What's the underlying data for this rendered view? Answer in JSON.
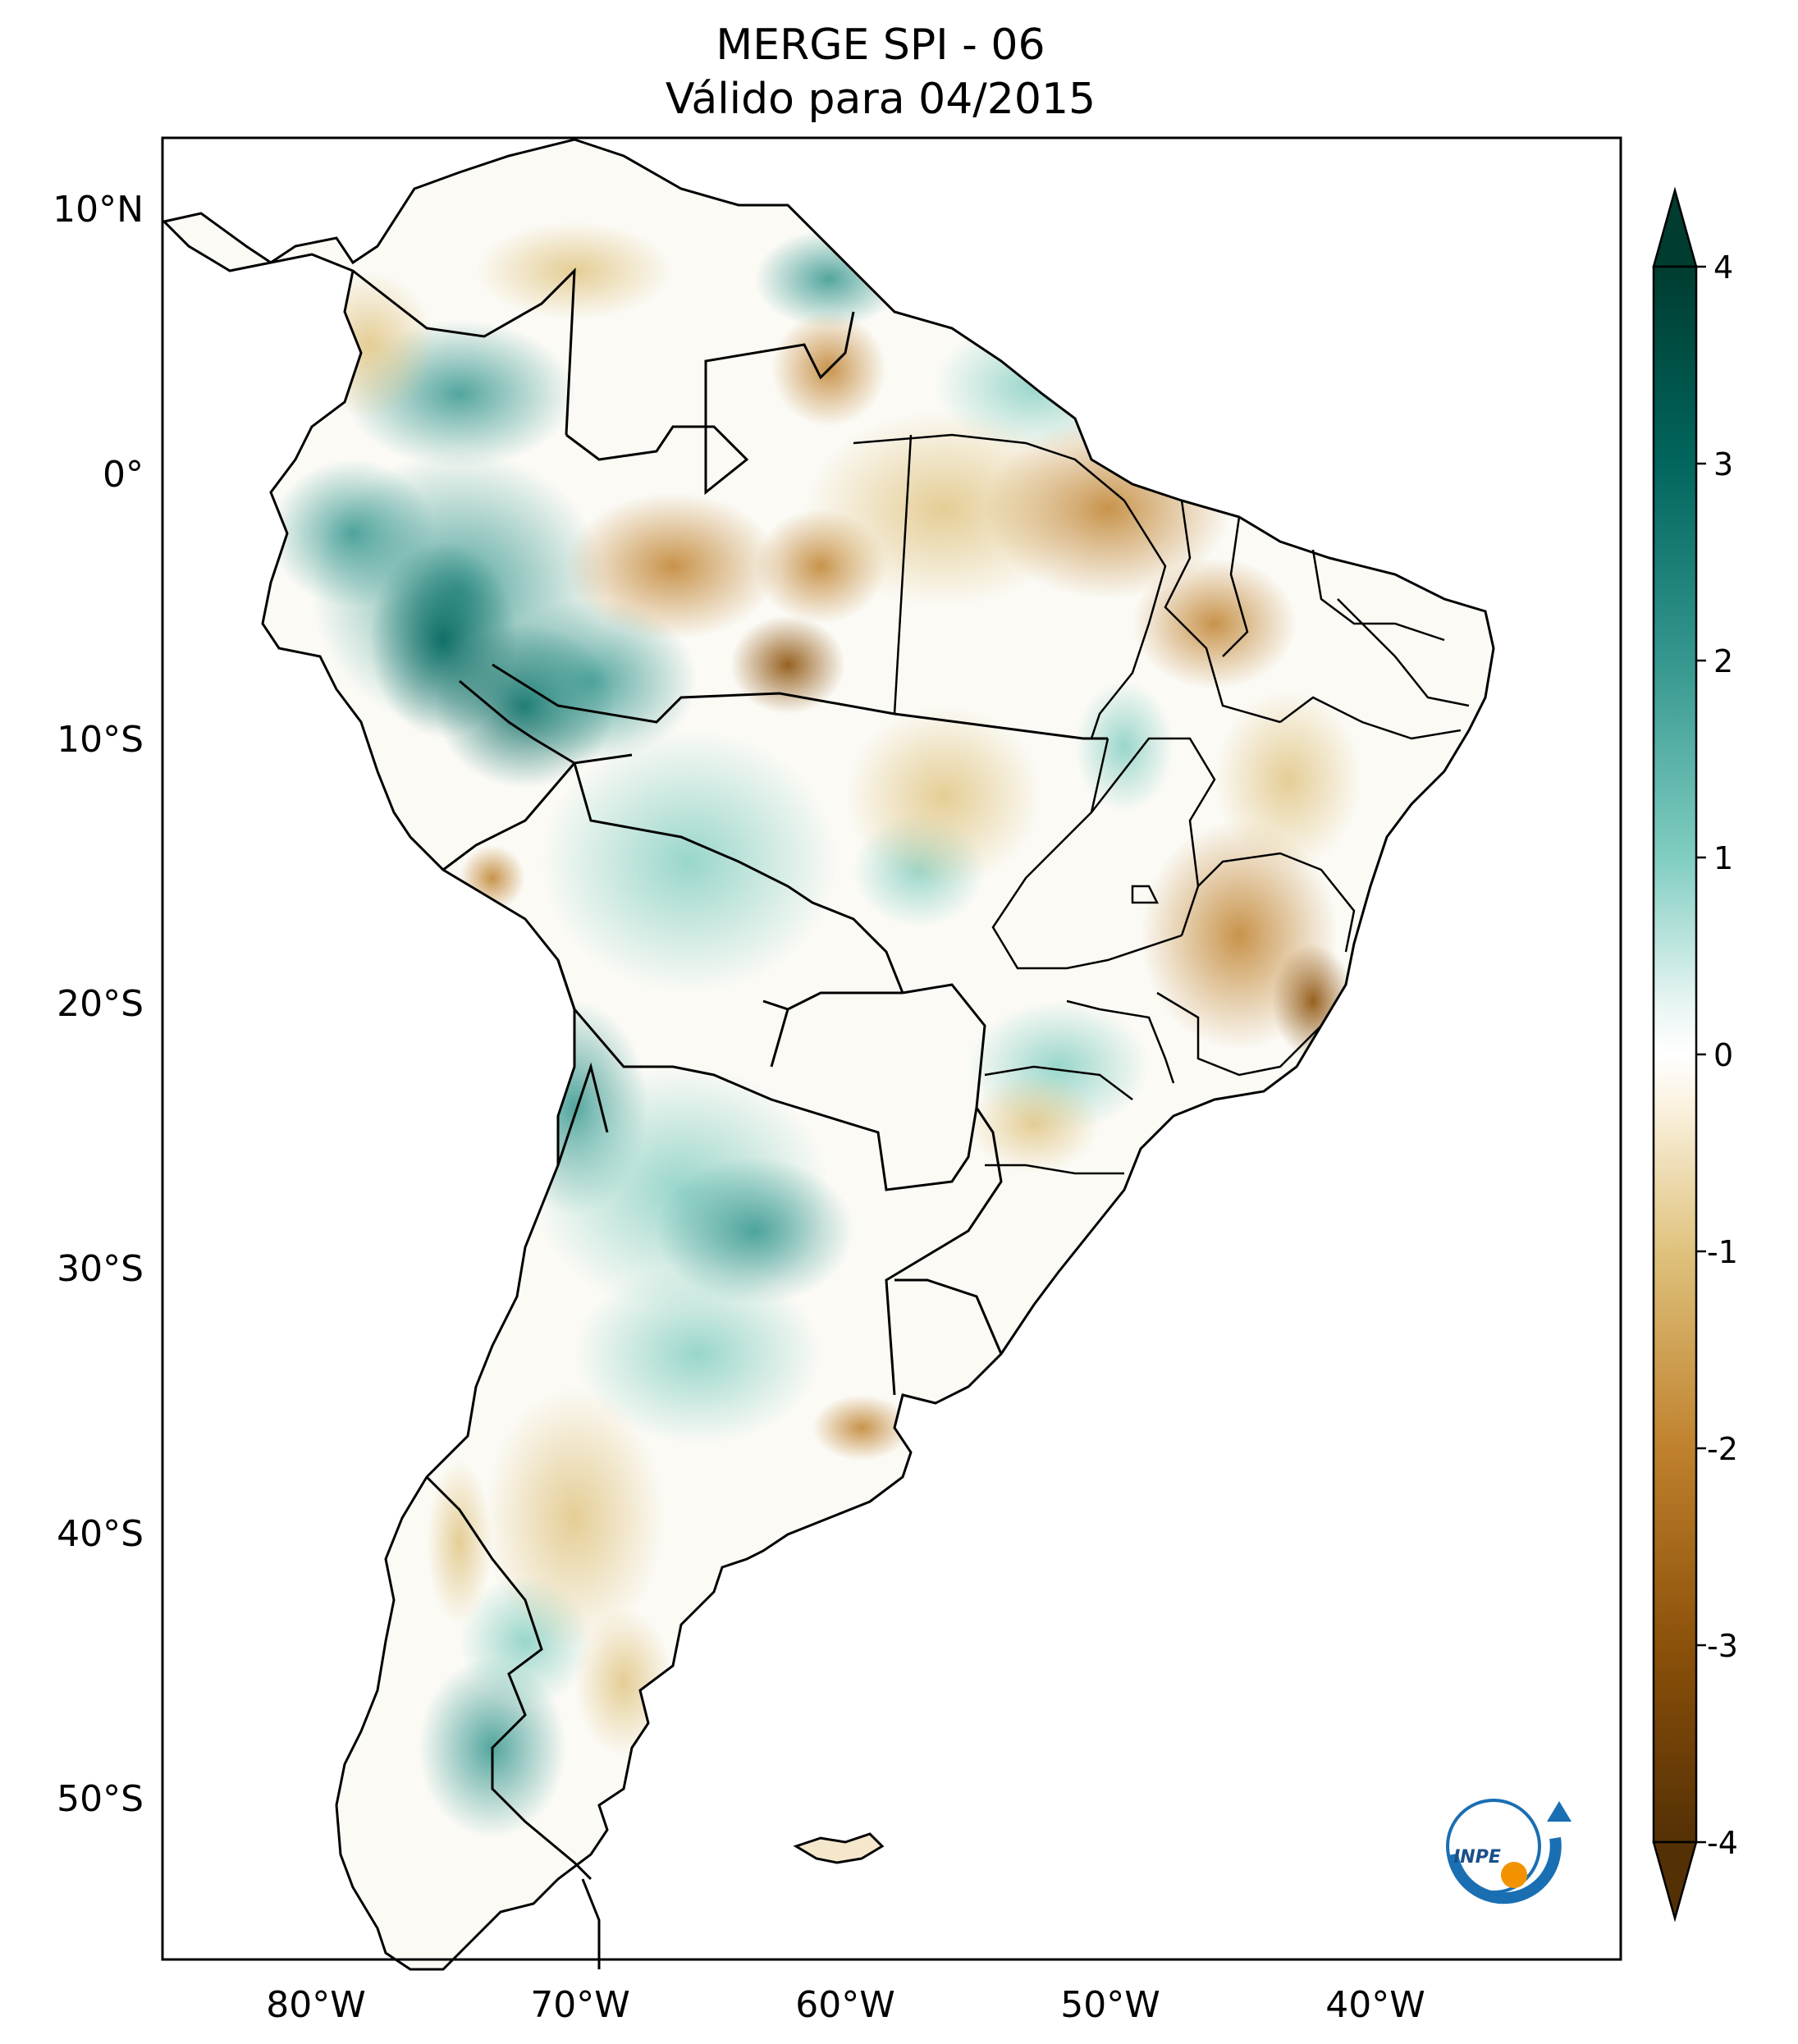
{
  "title": {
    "line1": "MERGE   SPI - 06",
    "line2": "Válido para 04/2015"
  },
  "axes": {
    "lat_ticks": [
      "10°N",
      "0°",
      "10°S",
      "20°S",
      "30°S",
      "40°S",
      "50°S"
    ],
    "lon_ticks": [
      "80°W",
      "70°W",
      "60°W",
      "50°W",
      "40°W"
    ]
  },
  "colorbar": {
    "ticks": [
      "4",
      "3",
      "2",
      "1",
      "0",
      "-1",
      "-2",
      "-3",
      "-4"
    ],
    "colors": {
      "dry_max": "#543005",
      "dry": "#bf812d",
      "dry_light": "#f6e8c3",
      "neutral": "#ffffff",
      "wet_light": "#c7eae5",
      "wet": "#35978f",
      "wet_max": "#003c30"
    }
  },
  "logo": {
    "text": "INPE",
    "colors": {
      "blue": "#1a6fb3",
      "orange": "#f39200"
    }
  }
}
